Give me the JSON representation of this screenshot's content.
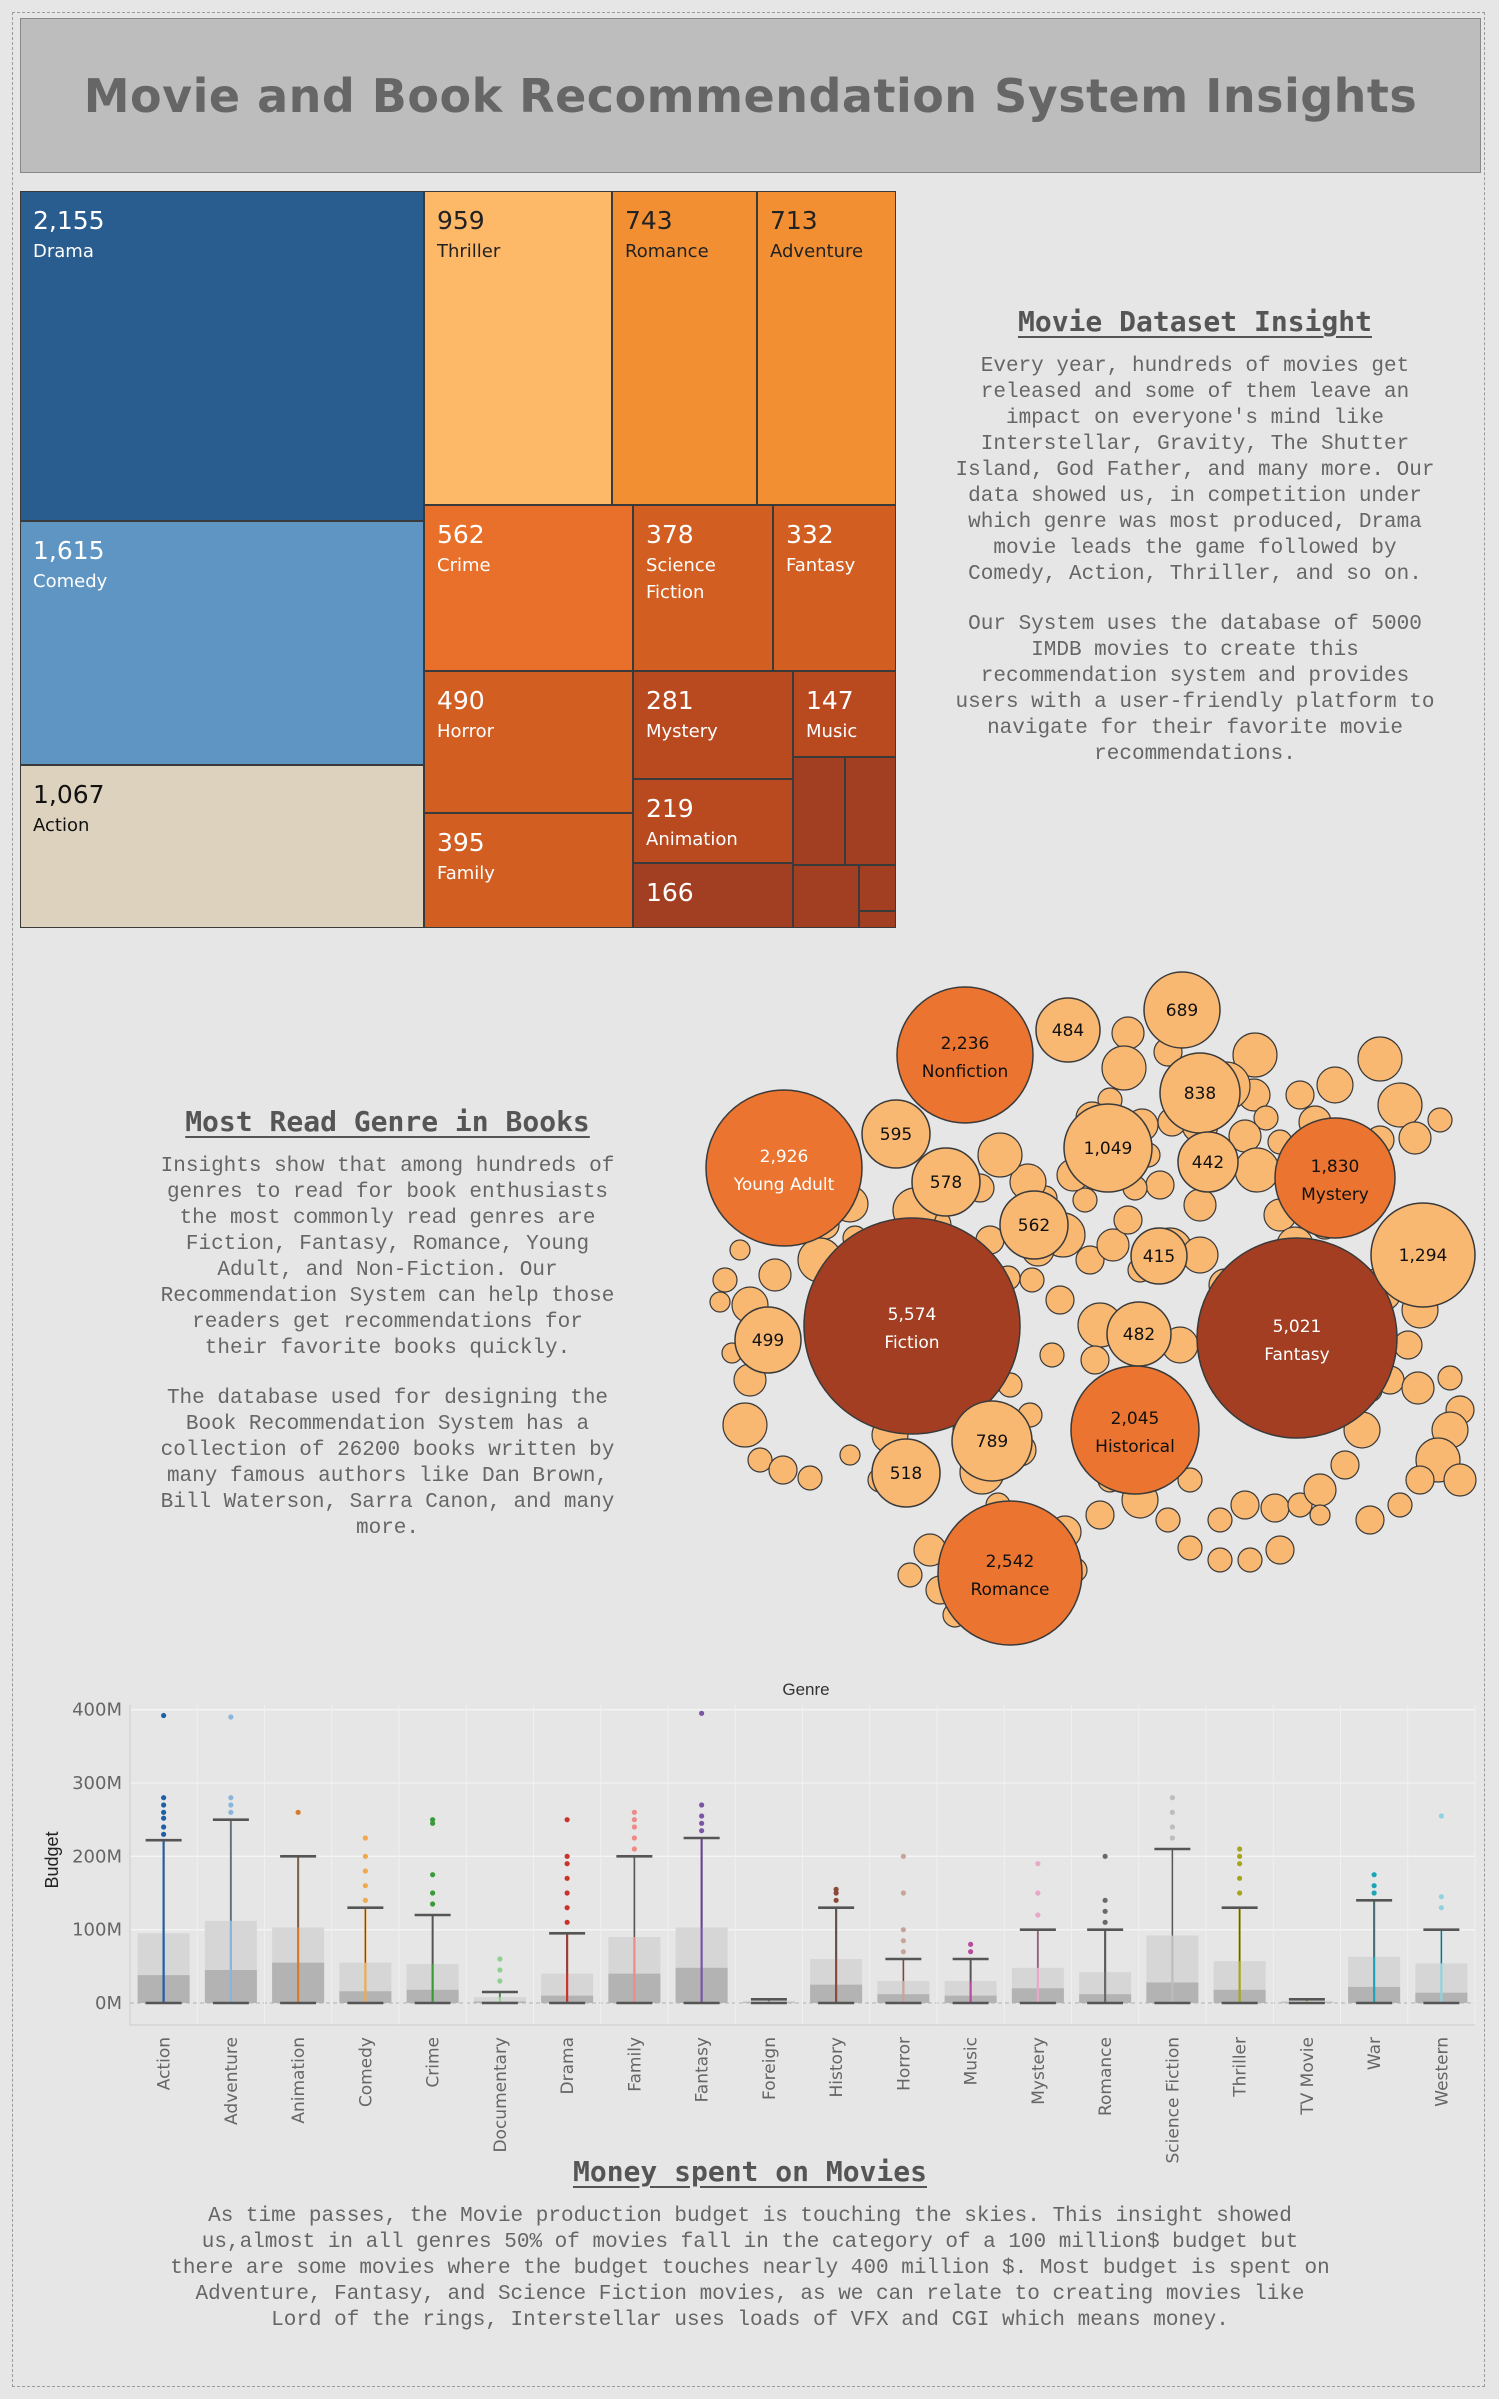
{
  "page_title": "Movie and Book Recommendation System Insights",
  "movie_insight": {
    "heading": "Movie Dataset Insight",
    "paragraphs": [
      "Every year, hundreds of movies get\nreleased and some of them leave an\nimpact on everyone's mind like\nInterstellar, Gravity, The Shutter\nIsland, God Father, and many more. Our\ndata showed us, in competition under\nwhich genre was most produced, Drama\nmovie leads the game followed by\nComedy, Action, Thriller, and so on.",
      "Our System uses the database of 5000\nIMDB movies to create this\nrecommendation system and provides\nusers with a user-friendly platform to\nnavigate for their favorite movie\nrecommendations."
    ]
  },
  "book_insight": {
    "heading": "Most Read Genre in Books",
    "paragraphs": [
      "Insights show that among hundreds of\ngenres to read for book enthusiasts\nthe most commonly read genres are\nFiction, Fantasy, Romance,  Young\nAdult, and Non-Fiction. Our\nRecommendation System can help those\nreaders get recommendations for\ntheir favorite books quickly.",
      "The database used for designing the\nBook Recommendation System has a\ncollection of 26200 books written by\nmany famous authors like Dan Brown,\nBill Waterson, Sarra Canon, and many\nmore."
    ]
  },
  "money_insight": {
    "heading": "Money spent on Movies",
    "paragraphs": [
      "As time passes, the Movie production budget is touching the skies. This insight showed\nus,almost in all genres 50% of movies fall in the category of a 100 million$ budget but\nthere are some movies where the budget touches nearly 400 million $. Most budget is spent on\nAdventure, Fantasy, and Science Fiction movies, as we can relate to creating movies like\nLord of the rings, Interstellar uses loads of VFX and CGI which means money."
    ]
  },
  "colors": {
    "drama": "#2a5d8f",
    "comedy": "#5f95c3",
    "action": "#ddd2bd",
    "thriller": "#fdb868",
    "orange_mid": "#f28f33",
    "orange_deep": "#e8702a",
    "rust": "#d25e22",
    "rust_dark": "#b9491f",
    "brown": "#a23f22",
    "bubble_light": "#f9b872",
    "bubble_orange": "#ea7430",
    "bubble_brown": "#a33e22"
  },
  "chart_data": [
    {
      "type": "treemap",
      "title": "",
      "cells": [
        {
          "label": "Drama",
          "value": 2155
        },
        {
          "label": "Comedy",
          "value": 1615
        },
        {
          "label": "Action",
          "value": 1067
        },
        {
          "label": "Thriller",
          "value": 959
        },
        {
          "label": "Romance",
          "value": 743
        },
        {
          "label": "Adventure",
          "value": 713
        },
        {
          "label": "Crime",
          "value": 562
        },
        {
          "label": "Science Fiction",
          "value": 378
        },
        {
          "label": "Fantasy",
          "value": 332
        },
        {
          "label": "Horror",
          "value": 490
        },
        {
          "label": "Mystery",
          "value": 281
        },
        {
          "label": "Music",
          "value": 147
        },
        {
          "label": "Family",
          "value": 395
        },
        {
          "label": "Animation",
          "value": 219
        },
        {
          "label": "",
          "value": 166
        }
      ]
    },
    {
      "type": "bubble",
      "title": "",
      "bubbles": [
        {
          "label": "Fiction",
          "value": 5574
        },
        {
          "label": "Fantasy",
          "value": 5021
        },
        {
          "label": "Young Adult",
          "value": 2926
        },
        {
          "label": "Romance",
          "value": 2542
        },
        {
          "label": "Nonfiction",
          "value": 2236
        },
        {
          "label": "Historical",
          "value": 2045
        },
        {
          "label": "Mystery",
          "value": 1830
        },
        {
          "label": "",
          "value": 1294
        },
        {
          "label": "",
          "value": 1049
        },
        {
          "label": "",
          "value": 838
        },
        {
          "label": "",
          "value": 789
        },
        {
          "label": "",
          "value": 689
        },
        {
          "label": "",
          "value": 595
        },
        {
          "label": "",
          "value": 578
        },
        {
          "label": "",
          "value": 562
        },
        {
          "label": "",
          "value": 518
        },
        {
          "label": "",
          "value": 499
        },
        {
          "label": "",
          "value": 484
        },
        {
          "label": "",
          "value": 482
        },
        {
          "label": "",
          "value": 442
        },
        {
          "label": "",
          "value": 415
        }
      ]
    },
    {
      "type": "box",
      "title": "Genre",
      "xlabel": "",
      "ylabel": "Budget",
      "ylim": [
        -30,
        420
      ],
      "yticks": [
        0,
        100,
        200,
        300,
        400
      ],
      "ytick_labels": [
        "0M",
        "100M",
        "200M",
        "300M",
        "400M"
      ],
      "grid": true,
      "categories": [
        "Action",
        "Adventure",
        "Animation",
        "Comedy",
        "Crime",
        "Documentary",
        "Drama",
        "Family",
        "Fantasy",
        "Foreign",
        "History",
        "Horror",
        "Music",
        "Mystery",
        "Romance",
        "Science Fiction",
        "Thriller",
        "TV Movie",
        "War",
        "Western"
      ],
      "series": [
        {
          "name": "Action",
          "color": "#1f5fa8",
          "min": 0,
          "q1": 5,
          "median": 38,
          "q3": 95,
          "max": 222,
          "outliers": [
            230,
            240,
            252,
            260,
            270,
            280,
            392
          ]
        },
        {
          "name": "Adventure",
          "color": "#8bb5d9",
          "min": 0,
          "q1": 12,
          "median": 45,
          "q3": 112,
          "max": 250,
          "outliers": [
            260,
            270,
            280,
            390
          ]
        },
        {
          "name": "Animation",
          "color": "#d97a2b",
          "min": 0,
          "q1": 20,
          "median": 55,
          "q3": 103,
          "max": 200,
          "outliers": [
            260
          ]
        },
        {
          "name": "Comedy",
          "color": "#f0a94f",
          "min": 0,
          "q1": 2,
          "median": 16,
          "q3": 55,
          "max": 130,
          "outliers": [
            140,
            160,
            180,
            200,
            225
          ]
        },
        {
          "name": "Crime",
          "color": "#3a9a3a",
          "min": 0,
          "q1": 3,
          "median": 18,
          "q3": 53,
          "max": 120,
          "outliers": [
            135,
            150,
            175,
            245,
            250
          ]
        },
        {
          "name": "Documentary",
          "color": "#8fd18f",
          "min": 0,
          "q1": 0,
          "median": 2,
          "q3": 8,
          "max": 15,
          "outliers": [
            30,
            45,
            60
          ]
        },
        {
          "name": "Drama",
          "color": "#c8342a",
          "min": 0,
          "q1": 1,
          "median": 10,
          "q3": 40,
          "max": 95,
          "outliers": [
            110,
            130,
            150,
            170,
            190,
            200,
            250
          ]
        },
        {
          "name": "Family",
          "color": "#f08a86",
          "min": 0,
          "q1": 18,
          "median": 40,
          "q3": 90,
          "max": 200,
          "outliers": [
            210,
            225,
            240,
            250,
            260
          ]
        },
        {
          "name": "Fantasy",
          "color": "#7a55a6",
          "min": 0,
          "q1": 20,
          "median": 48,
          "q3": 103,
          "max": 225,
          "outliers": [
            235,
            245,
            255,
            270,
            395
          ]
        },
        {
          "name": "Foreign",
          "color": "#b9a0cf",
          "min": 0,
          "q1": 0,
          "median": 1,
          "q3": 3,
          "max": 5,
          "outliers": []
        },
        {
          "name": "History",
          "color": "#8a4a3a",
          "min": 0,
          "q1": 8,
          "median": 25,
          "q3": 60,
          "max": 130,
          "outliers": [
            140,
            150,
            155
          ]
        },
        {
          "name": "Horror",
          "color": "#c7a39a",
          "min": 0,
          "q1": 3,
          "median": 12,
          "q3": 30,
          "max": 60,
          "outliers": [
            70,
            85,
            100,
            150,
            200
          ]
        },
        {
          "name": "Music",
          "color": "#b84a9e",
          "min": 0,
          "q1": 2,
          "median": 10,
          "q3": 30,
          "max": 60,
          "outliers": [
            70,
            80
          ]
        },
        {
          "name": "Mystery",
          "color": "#e8a8c8",
          "min": 0,
          "q1": 5,
          "median": 20,
          "q3": 48,
          "max": 100,
          "outliers": [
            120,
            150,
            190
          ]
        },
        {
          "name": "Romance",
          "color": "#6a6a6a",
          "min": 0,
          "q1": 2,
          "median": 12,
          "q3": 42,
          "max": 100,
          "outliers": [
            110,
            125,
            140,
            200
          ]
        },
        {
          "name": "Science Fiction",
          "color": "#bdbdbd",
          "min": 0,
          "q1": 10,
          "median": 28,
          "q3": 92,
          "max": 210,
          "outliers": [
            225,
            240,
            260,
            280
          ]
        },
        {
          "name": "Thriller",
          "color": "#a6a61a",
          "min": 0,
          "q1": 4,
          "median": 18,
          "q3": 57,
          "max": 130,
          "outliers": [
            150,
            170,
            190,
            200,
            210
          ]
        },
        {
          "name": "TV Movie",
          "color": "#cfcf6a",
          "min": 0,
          "q1": 0,
          "median": 1,
          "q3": 3,
          "max": 5,
          "outliers": []
        },
        {
          "name": "War",
          "color": "#1aa6b8",
          "min": 0,
          "q1": 8,
          "median": 22,
          "q3": 63,
          "max": 140,
          "outliers": [
            150,
            160,
            175
          ]
        },
        {
          "name": "Western",
          "color": "#8fd3df",
          "min": 0,
          "q1": 3,
          "median": 14,
          "q3": 54,
          "max": 100,
          "outliers": [
            130,
            145,
            255
          ]
        }
      ]
    }
  ]
}
